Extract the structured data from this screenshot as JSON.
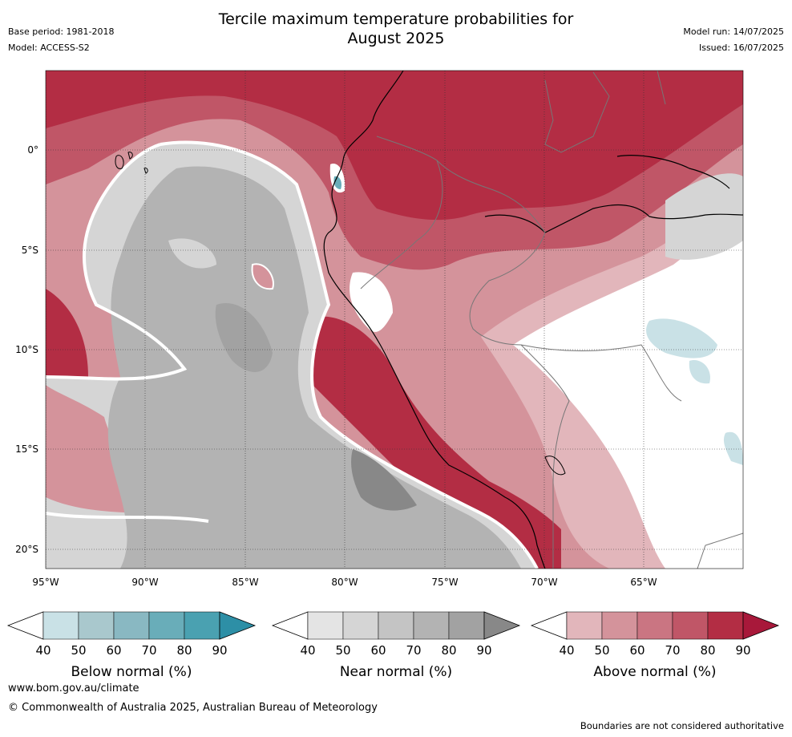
{
  "title": {
    "line1": "Tercile maximum temperature probabilities for",
    "line2": "August 2025"
  },
  "meta": {
    "base_period": "Base period: 1981-2018",
    "model": "Model: ACCESS-S2",
    "model_run": "Model run: 14/07/2025",
    "issued": "Issued: 16/07/2025"
  },
  "map": {
    "lat_labels": [
      "0°",
      "5°S",
      "10°S",
      "15°S",
      "20°S"
    ],
    "lon_labels": [
      "95°W",
      "90°W",
      "85°W",
      "80°W",
      "75°W",
      "70°W",
      "65°W"
    ]
  },
  "colorbars": [
    {
      "name": "below",
      "title": "Below normal (%)",
      "ticks": [
        "40",
        "50",
        "60",
        "70",
        "80",
        "90"
      ],
      "colors": [
        "#c9e1e6",
        "#a9c8cd",
        "#89b8c2",
        "#69adb9",
        "#4aa1b1",
        "#2d8fa6"
      ]
    },
    {
      "name": "near",
      "title": "Near normal (%)",
      "ticks": [
        "40",
        "50",
        "60",
        "70",
        "80",
        "90"
      ],
      "colors": [
        "#e4e4e4",
        "#d5d5d5",
        "#c4c4c4",
        "#b3b3b3",
        "#a2a2a2",
        "#888888"
      ]
    },
    {
      "name": "above",
      "title": "Above normal (%)",
      "ticks": [
        "40",
        "50",
        "60",
        "70",
        "80",
        "90"
      ],
      "colors": [
        "#e2b6bb",
        "#d4939b",
        "#ca7582",
        "#c05667",
        "#b32d44",
        "#a8183a"
      ]
    }
  ],
  "footer": {
    "url": "www.bom.gov.au/climate",
    "copyright": "© Commonwealth of Australia 2025, Australian Bureau of Meteorology",
    "note": "Boundaries are not considered authoritative"
  }
}
